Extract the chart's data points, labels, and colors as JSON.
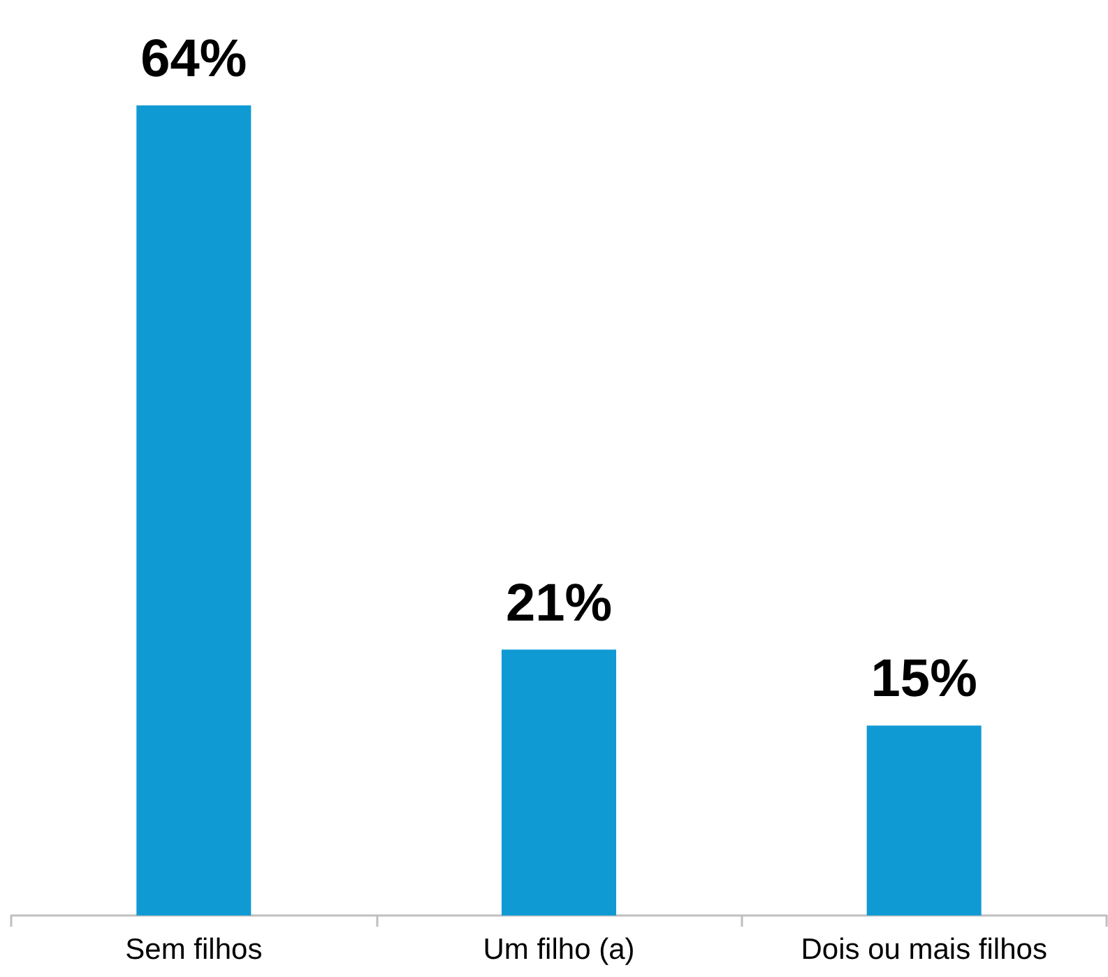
{
  "chart_data": {
    "type": "bar",
    "categories": [
      "Sem filhos",
      "Um filho (a)",
      "Dois ou mais filhos"
    ],
    "values": [
      64,
      21,
      15
    ],
    "value_labels": [
      "64%",
      "21%",
      "15%"
    ],
    "color": "#109ad4",
    "tick_labels": "x"
  }
}
